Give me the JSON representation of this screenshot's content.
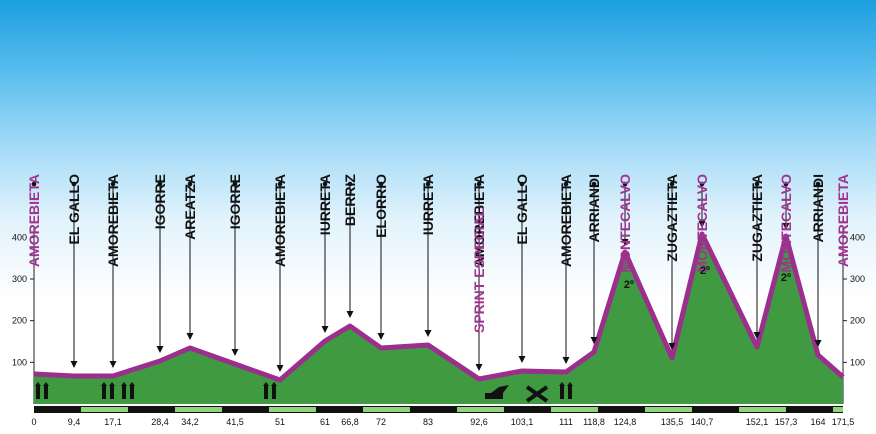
{
  "colors": {
    "sky_top": "#1c9fe0",
    "terrain_fill_top": "#b5e3a4",
    "terrain_fill_bottom": "#3f9a42",
    "ridge": "#9c2e8d",
    "label_highlight": "#a0338f",
    "label_default": "#111111",
    "bar_dark": "#111111",
    "bar_green": "#8fd37a"
  },
  "altitude_ticks": [
    "100",
    "200",
    "300",
    "400"
  ],
  "points": [
    {
      "km": "0",
      "place": "AMOREBIETA",
      "highlight": true,
      "marker": "none"
    },
    {
      "km": "9,4",
      "place": "EL GALLO",
      "highlight": false,
      "marker": "arrow"
    },
    {
      "km": "17,1",
      "place": "AMOREBIETA",
      "highlight": false,
      "marker": "arrow"
    },
    {
      "km": "28,4",
      "place": "IGORRE",
      "highlight": false,
      "marker": "arrow"
    },
    {
      "km": "34,2",
      "place": "AREATZA",
      "highlight": false,
      "marker": "arrow"
    },
    {
      "km": "41,5",
      "place": "IGORRE",
      "highlight": false,
      "marker": "arrow"
    },
    {
      "km": "51",
      "place": "AMOREBIETA",
      "highlight": false,
      "marker": "arrow"
    },
    {
      "km": "61",
      "place": "IURRETA",
      "highlight": false,
      "marker": "arrow"
    },
    {
      "km": "66,8",
      "place": "BERRIZ",
      "highlight": false,
      "marker": "arrow"
    },
    {
      "km": "72",
      "place": "ELORRIO",
      "highlight": false,
      "marker": "arrow"
    },
    {
      "km": "83",
      "place": "IURRETA",
      "highlight": false,
      "marker": "arrow"
    },
    {
      "km": "92,6",
      "place": "AMOREBIETA",
      "highlight": false,
      "marker": "arrow"
    },
    {
      "km": "103,1",
      "place": "EL GALLO",
      "highlight": false,
      "marker": "arrow"
    },
    {
      "km": "111",
      "place": "AMOREBIETA",
      "highlight": false,
      "marker": "arrow"
    },
    {
      "km": "118,8",
      "place": "ARRIANDI",
      "highlight": false,
      "marker": "arrow"
    },
    {
      "km": "124,8",
      "place": "MONTECALVO",
      "highlight": true,
      "marker": "summit"
    },
    {
      "km": "135,5",
      "place": "ZUGAZTIETA",
      "highlight": false,
      "marker": "arrow"
    },
    {
      "km": "140,7",
      "place": "MONTECALVO",
      "highlight": true,
      "marker": "summit"
    },
    {
      "km": "152,1",
      "place": "ZUGAZTIETA",
      "highlight": false,
      "marker": "arrow"
    },
    {
      "km": "157,3",
      "place": "MONTECALVO",
      "highlight": true,
      "marker": "summit"
    },
    {
      "km": "164",
      "place": "ARRIANDI",
      "highlight": false,
      "marker": "arrow"
    },
    {
      "km": "171,5",
      "place": "AMOREBIETA",
      "highlight": true,
      "marker": "none"
    }
  ],
  "sprint_label": "SPRINT ESPECIAL",
  "climb_categories": [
    "2º",
    "2º",
    "2º"
  ],
  "sign_icons": [
    "level-crossing-icon",
    "level-crossing-icon",
    "level-crossing-icon",
    "level-crossing-icon",
    "sprint-arrow-icon",
    "sprint-cross-icon",
    "level-crossing-icon"
  ]
}
